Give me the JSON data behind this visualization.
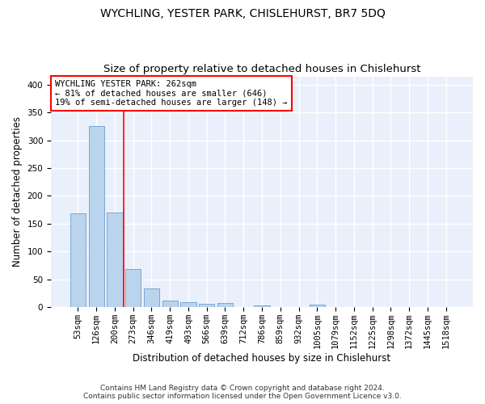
{
  "title": "WYCHLING, YESTER PARK, CHISLEHURST, BR7 5DQ",
  "subtitle": "Size of property relative to detached houses in Chislehurst",
  "xlabel": "Distribution of detached houses by size in Chislehurst",
  "ylabel": "Number of detached properties",
  "categories": [
    "53sqm",
    "126sqm",
    "200sqm",
    "273sqm",
    "346sqm",
    "419sqm",
    "493sqm",
    "566sqm",
    "639sqm",
    "712sqm",
    "786sqm",
    "859sqm",
    "932sqm",
    "1005sqm",
    "1079sqm",
    "1152sqm",
    "1225sqm",
    "1298sqm",
    "1372sqm",
    "1445sqm",
    "1518sqm"
  ],
  "values": [
    168,
    325,
    170,
    68,
    33,
    11,
    9,
    6,
    8,
    0,
    3,
    0,
    0,
    5,
    0,
    0,
    0,
    0,
    0,
    0,
    0
  ],
  "bar_color": "#bad4ee",
  "bar_edge_color": "#7aa8d4",
  "bar_width": 0.85,
  "ylim": [
    0,
    415
  ],
  "yticks": [
    0,
    50,
    100,
    150,
    200,
    250,
    300,
    350,
    400
  ],
  "red_line_x": 2.5,
  "annotation_text": "WYCHLING YESTER PARK: 262sqm\n← 81% of detached houses are smaller (646)\n19% of semi-detached houses are larger (148) →",
  "footer_line1": "Contains HM Land Registry data © Crown copyright and database right 2024.",
  "footer_line2": "Contains public sector information licensed under the Open Government Licence v3.0.",
  "background_color": "#eaf0fb",
  "grid_color": "#d8e2f0",
  "title_fontsize": 10,
  "subtitle_fontsize": 9.5,
  "axis_label_fontsize": 8.5,
  "tick_fontsize": 7.5,
  "annotation_fontsize": 7.5,
  "footer_fontsize": 6.5
}
